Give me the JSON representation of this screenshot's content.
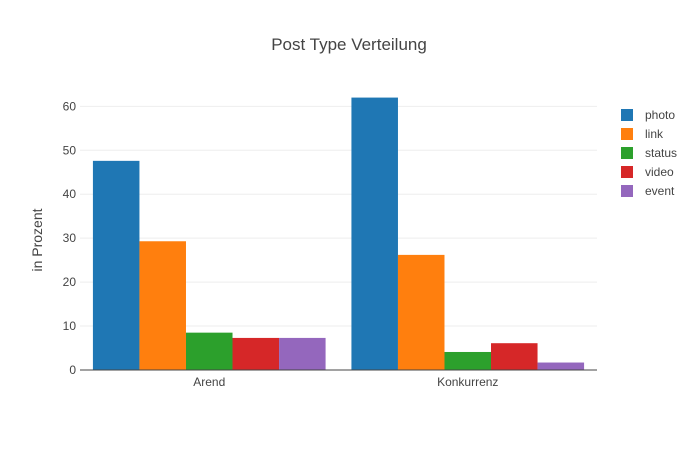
{
  "chart_data": {
    "type": "bar",
    "title": "Post Type Verteilung",
    "xlabel": "",
    "ylabel": "in Prozent",
    "categories": [
      "Arend",
      "Konkurrenz"
    ],
    "ylim": [
      0,
      66
    ],
    "yticks": [
      0,
      10,
      20,
      30,
      40,
      50,
      60
    ],
    "grid": true,
    "legend_position": "top-right",
    "series": [
      {
        "name": "photo",
        "color": "#1f77b4",
        "values": [
          47.6,
          62.0
        ]
      },
      {
        "name": "link",
        "color": "#ff7f0e",
        "values": [
          29.3,
          26.2
        ]
      },
      {
        "name": "status",
        "color": "#2ca02c",
        "values": [
          8.5,
          4.1
        ]
      },
      {
        "name": "video",
        "color": "#d62728",
        "values": [
          7.3,
          6.1
        ]
      },
      {
        "name": "event",
        "color": "#9467bd",
        "values": [
          7.3,
          1.7
        ]
      }
    ]
  }
}
